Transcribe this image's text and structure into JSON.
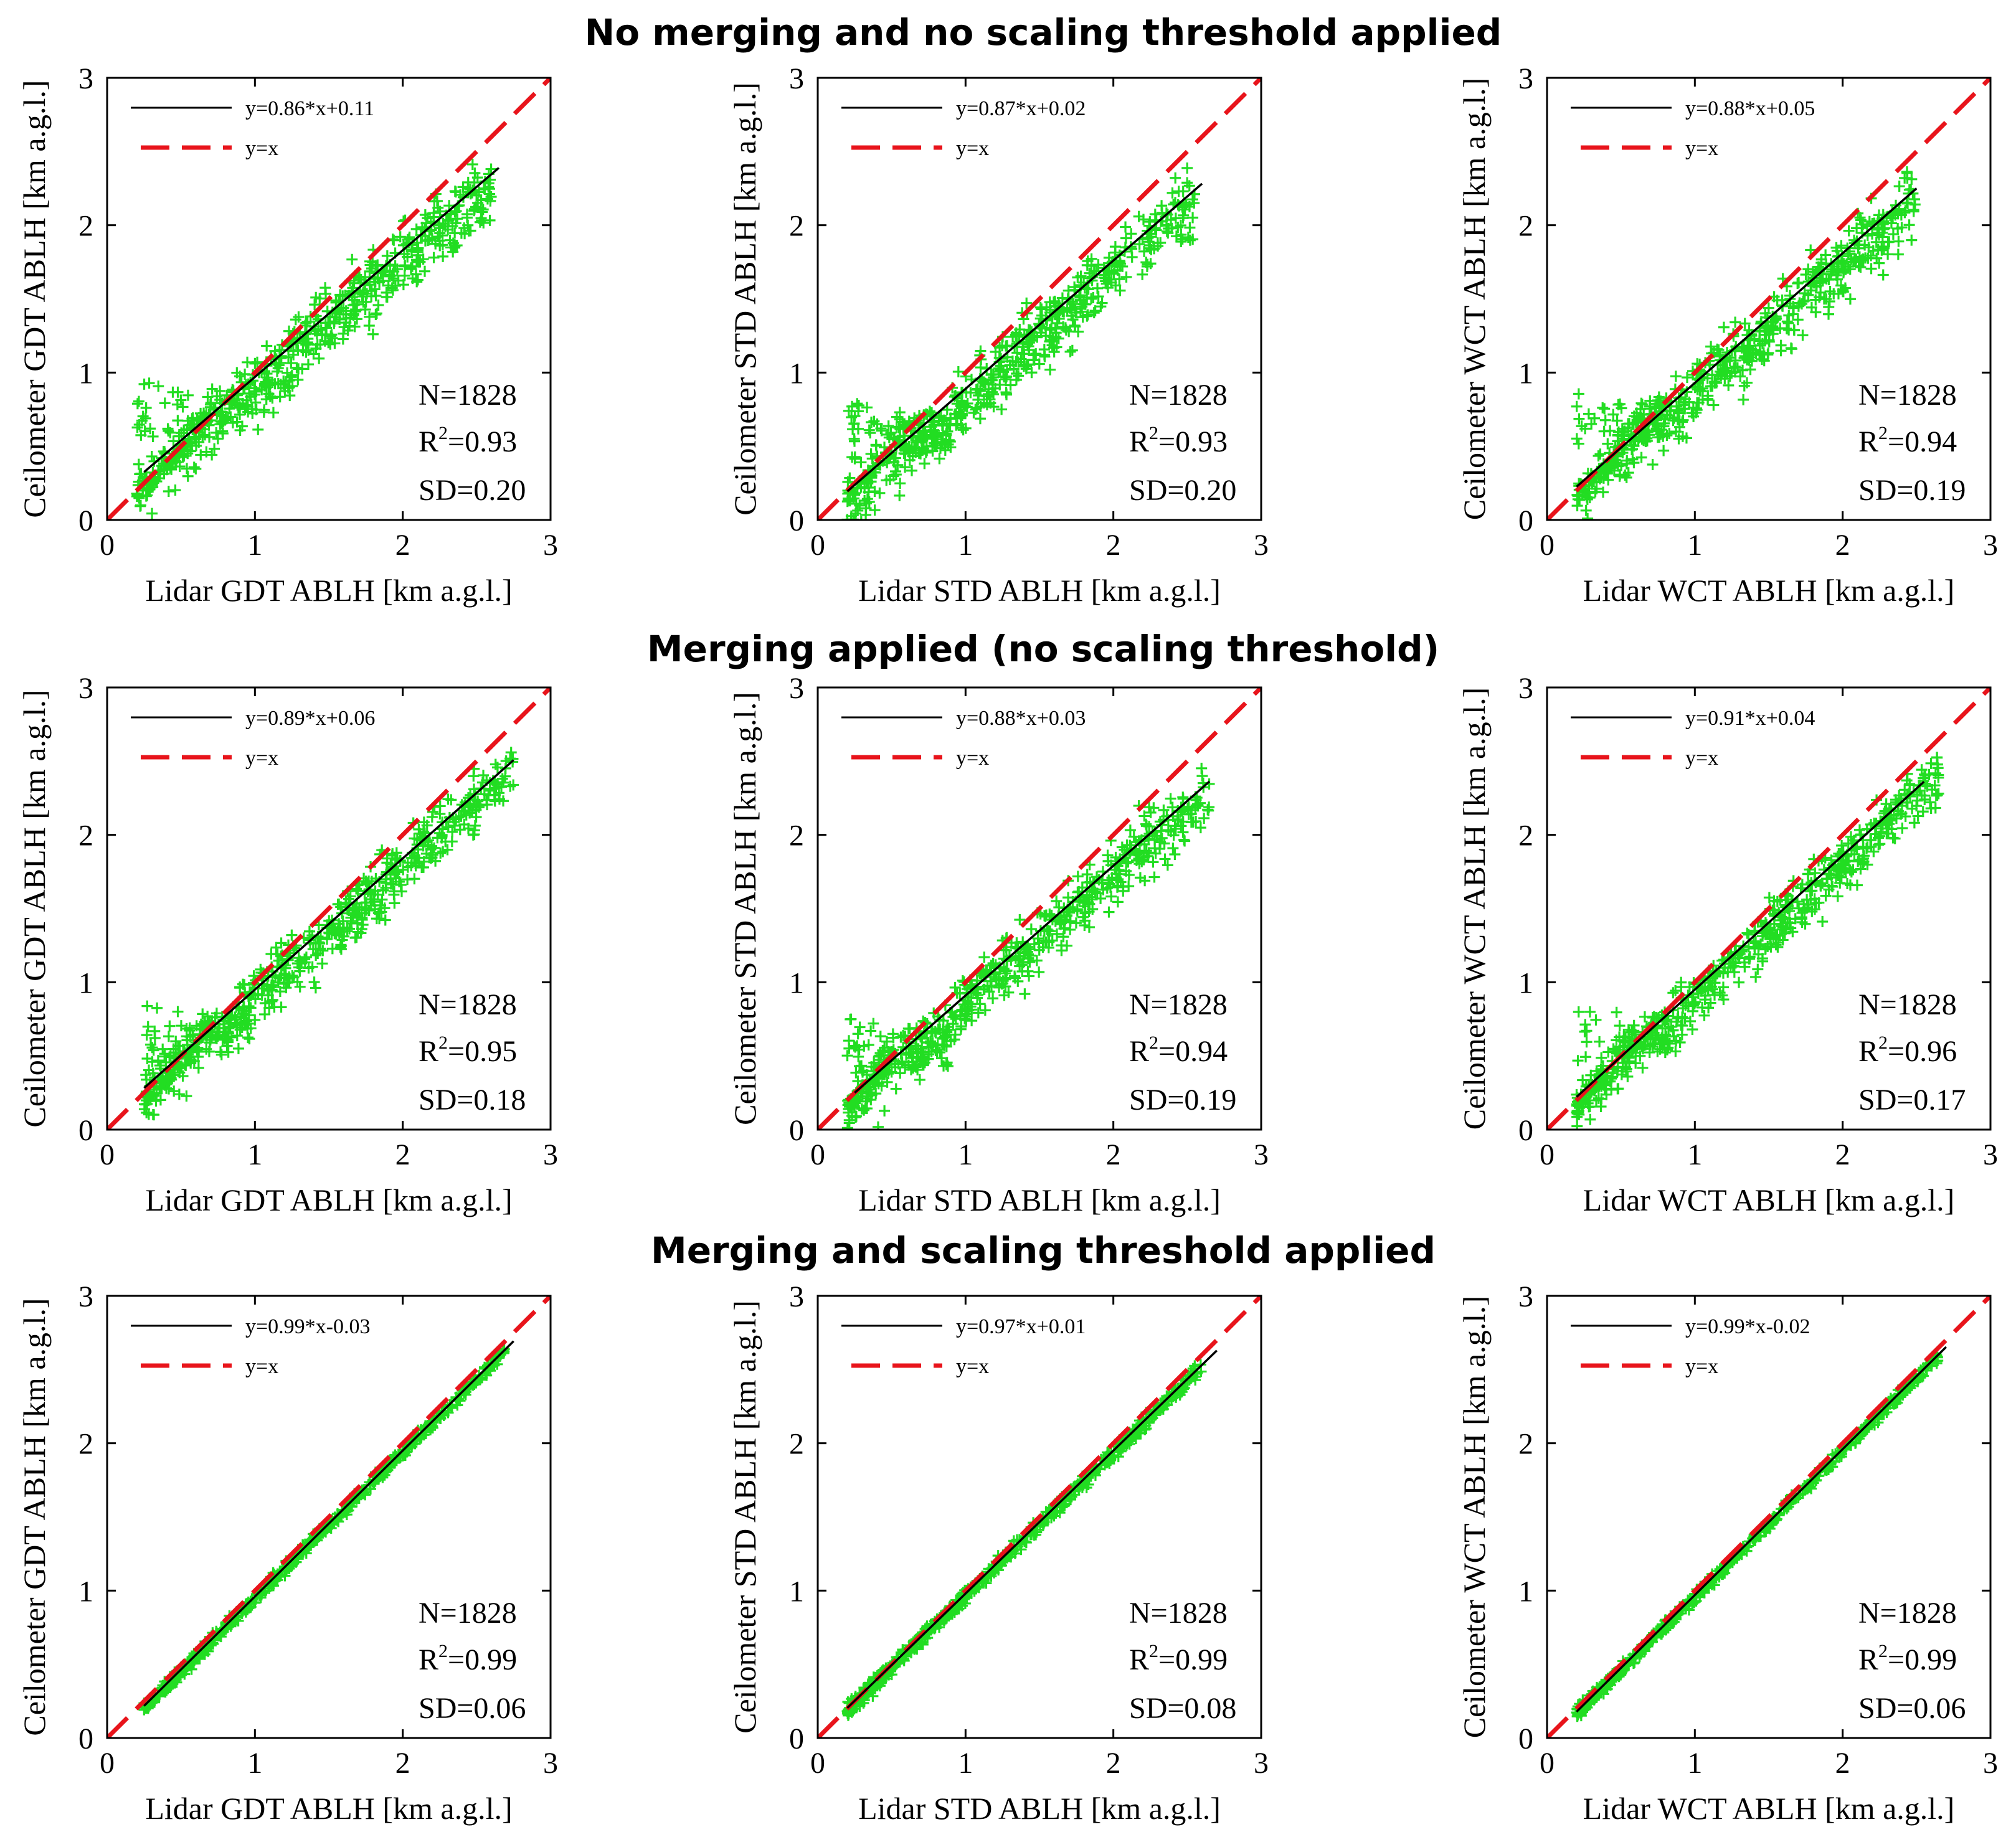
{
  "figure": {
    "row_titles": [
      "No merging and no scaling threshold applied",
      "Merging applied (no scaling threshold)",
      "Merging and scaling threshold applied"
    ]
  },
  "colors": {
    "points": "#22dd22",
    "fit_line": "#000000",
    "identity_line": "#e8141b",
    "axes": "#000000"
  },
  "icons": {
    "point_marker": "plus-marker"
  },
  "chart_data": [
    {
      "type": "scatter",
      "row": 0,
      "col": 0,
      "method": "GDT",
      "xlabel": "Lidar GDT ABLH [km a.g.l.]",
      "ylabel": "Ceilometer GDT ABLH [km a.g.l.]",
      "xlim": [
        0,
        3
      ],
      "ylim": [
        0,
        3
      ],
      "ticks": [
        0,
        1,
        2,
        3
      ],
      "fit_label": "y=0.86*x+0.11",
      "identity_label": "y=x",
      "fit": {
        "slope": 0.86,
        "intercept": 0.11,
        "x_range": [
          0.25,
          2.65
        ]
      },
      "n_label": "N=1828",
      "r2_prefix": "R",
      "r2_exp": "2",
      "r2_value": "=0.93",
      "sd_label": "SD=0.20",
      "scatter_model": {
        "x_range": [
          0.2,
          2.6
        ],
        "low_floor": 0.75,
        "spread": 0.3
      }
    },
    {
      "type": "scatter",
      "row": 0,
      "col": 1,
      "method": "STD",
      "xlabel": "Lidar STD ABLH [km a.g.l.]",
      "ylabel": "Ceilometer STD ABLH [km a.g.l.]",
      "xlim": [
        0,
        3
      ],
      "ylim": [
        0,
        3
      ],
      "ticks": [
        0,
        1,
        2,
        3
      ],
      "fit_label": "y=0.87*x+0.02",
      "identity_label": "y=x",
      "fit": {
        "slope": 0.87,
        "intercept": 0.02,
        "x_range": [
          0.2,
          2.6
        ]
      },
      "n_label": "N=1828",
      "r2_prefix": "R",
      "r2_exp": "2",
      "r2_value": "=0.93",
      "sd_label": "SD=0.20",
      "scatter_model": {
        "x_range": [
          0.2,
          2.55
        ],
        "low_floor": 0.6,
        "spread": 0.3
      }
    },
    {
      "type": "scatter",
      "row": 0,
      "col": 2,
      "method": "WCT",
      "xlabel": "Lidar WCT ABLH [km a.g.l.]",
      "ylabel": "Ceilometer WCT ABLH [km a.g.l.]",
      "xlim": [
        0,
        3
      ],
      "ylim": [
        0,
        3
      ],
      "ticks": [
        0,
        1,
        2,
        3
      ],
      "fit_label": "y=0.88*x+0.05",
      "identity_label": "y=x",
      "fit": {
        "slope": 0.88,
        "intercept": 0.05,
        "x_range": [
          0.2,
          2.5
        ]
      },
      "n_label": "N=1828",
      "r2_prefix": "R",
      "r2_exp": "2",
      "r2_value": "=0.94",
      "sd_label": "SD=0.19",
      "scatter_model": {
        "x_range": [
          0.2,
          2.5
        ],
        "low_floor": 0.7,
        "spread": 0.29
      }
    },
    {
      "type": "scatter",
      "row": 1,
      "col": 0,
      "method": "GDT",
      "xlabel": "Lidar GDT ABLH [km a.g.l.]",
      "ylabel": "Ceilometer GDT ABLH [km a.g.l.]",
      "xlim": [
        0,
        3
      ],
      "ylim": [
        0,
        3
      ],
      "ticks": [
        0,
        1,
        2,
        3
      ],
      "fit_label": "y=0.89*x+0.06",
      "identity_label": "y=x",
      "fit": {
        "slope": 0.89,
        "intercept": 0.06,
        "x_range": [
          0.25,
          2.75
        ]
      },
      "n_label": "N=1828",
      "r2_prefix": "R",
      "r2_exp": "2",
      "r2_value": "=0.95",
      "sd_label": "SD=0.18",
      "scatter_model": {
        "x_range": [
          0.25,
          2.75
        ],
        "low_floor": 0.65,
        "spread": 0.26
      }
    },
    {
      "type": "scatter",
      "row": 1,
      "col": 1,
      "method": "STD",
      "xlabel": "Lidar STD ABLH [km a.g.l.]",
      "ylabel": "Ceilometer STD ABLH [km a.g.l.]",
      "xlim": [
        0,
        3
      ],
      "ylim": [
        0,
        3
      ],
      "ticks": [
        0,
        1,
        2,
        3
      ],
      "fit_label": "y=0.88*x+0.03",
      "identity_label": "y=x",
      "fit": {
        "slope": 0.88,
        "intercept": 0.03,
        "x_range": [
          0.25,
          2.65
        ]
      },
      "n_label": "N=1828",
      "r2_prefix": "R",
      "r2_exp": "2",
      "r2_value": "=0.94",
      "sd_label": "SD=0.19",
      "scatter_model": {
        "x_range": [
          0.2,
          2.65
        ],
        "low_floor": 0.55,
        "spread": 0.27
      }
    },
    {
      "type": "scatter",
      "row": 1,
      "col": 2,
      "method": "WCT",
      "xlabel": "Lidar WCT ABLH [km a.g.l.]",
      "ylabel": "Ceilometer WCT ABLH [km a.g.l.]",
      "xlim": [
        0,
        3
      ],
      "ylim": [
        0,
        3
      ],
      "ticks": [
        0,
        1,
        2,
        3
      ],
      "fit_label": "y=0.91*x+0.04",
      "identity_label": "y=x",
      "fit": {
        "slope": 0.91,
        "intercept": 0.04,
        "x_range": [
          0.2,
          2.55
        ]
      },
      "n_label": "N=1828",
      "r2_prefix": "R",
      "r2_exp": "2",
      "r2_value": "=0.96",
      "sd_label": "SD=0.17",
      "scatter_model": {
        "x_range": [
          0.2,
          2.65
        ],
        "low_floor": 0.65,
        "spread": 0.24
      }
    },
    {
      "type": "scatter",
      "row": 2,
      "col": 0,
      "method": "GDT",
      "xlabel": "Lidar GDT ABLH [km a.g.l.]",
      "ylabel": "Ceilometer GDT ABLH [km a.g.l.]",
      "xlim": [
        0,
        3
      ],
      "ylim": [
        0,
        3
      ],
      "ticks": [
        0,
        1,
        2,
        3
      ],
      "fit_label": "y=0.99*x-0.03",
      "identity_label": "y=x",
      "fit": {
        "slope": 0.99,
        "intercept": -0.03,
        "x_range": [
          0.25,
          2.75
        ]
      },
      "n_label": "N=1828",
      "r2_prefix": "R",
      "r2_exp": "2",
      "r2_value": "=0.99",
      "sd_label": "SD=0.06",
      "scatter_model": {
        "x_range": [
          0.25,
          2.7
        ],
        "low_floor": 0,
        "spread": 0.05
      }
    },
    {
      "type": "scatter",
      "row": 2,
      "col": 1,
      "method": "STD",
      "xlabel": "Lidar STD ABLH [km a.g.l.]",
      "ylabel": "Ceilometer STD ABLH [km a.g.l.]",
      "xlim": [
        0,
        3
      ],
      "ylim": [
        0,
        3
      ],
      "ticks": [
        0,
        1,
        2,
        3
      ],
      "fit_label": "y=0.97*x+0.01",
      "identity_label": "y=x",
      "fit": {
        "slope": 0.97,
        "intercept": 0.01,
        "x_range": [
          0.2,
          2.7
        ]
      },
      "n_label": "N=1828",
      "r2_prefix": "R",
      "r2_exp": "2",
      "r2_value": "=0.99",
      "sd_label": "SD=0.08",
      "scatter_model": {
        "x_range": [
          0.2,
          2.6
        ],
        "low_floor": 0,
        "spread": 0.06
      }
    },
    {
      "type": "scatter",
      "row": 2,
      "col": 2,
      "method": "WCT",
      "xlabel": "Lidar WCT ABLH [km a.g.l.]",
      "ylabel": "Ceilometer WCT ABLH [km a.g.l.]",
      "xlim": [
        0,
        3
      ],
      "ylim": [
        0,
        3
      ],
      "ticks": [
        0,
        1,
        2,
        3
      ],
      "fit_label": "y=0.99*x-0.02",
      "identity_label": "y=x",
      "fit": {
        "slope": 0.99,
        "intercept": -0.02,
        "x_range": [
          0.2,
          2.7
        ]
      },
      "n_label": "N=1828",
      "r2_prefix": "R",
      "r2_exp": "2",
      "r2_value": "=0.99",
      "sd_label": "SD=0.06",
      "scatter_model": {
        "x_range": [
          0.2,
          2.65
        ],
        "low_floor": 0,
        "spread": 0.05
      }
    }
  ]
}
